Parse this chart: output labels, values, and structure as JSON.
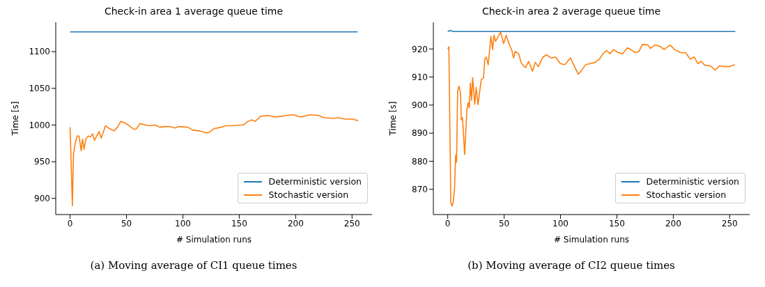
{
  "chart_data": [
    {
      "type": "line",
      "title": "Check-in area 1 average queue time",
      "xlabel": "# Simulation runs",
      "ylabel": "Time [s]",
      "xlim": [
        -12.75,
        267.75
      ],
      "xticks": [
        0,
        50,
        100,
        150,
        200,
        250
      ],
      "ylim": [
        878,
        1140
      ],
      "yticks": [
        900,
        950,
        1000,
        1050,
        1100
      ],
      "grid": false,
      "legend": "bottom right",
      "annotations": [
        "(a) Moving average of CI1 queue times"
      ],
      "series": [
        {
          "name": "Deterministic version",
          "color": "#1f77b4",
          "x": [
            0,
            255
          ],
          "values": [
            1127,
            1127
          ]
        },
        {
          "name": "Stochastic version",
          "color": "#ff7f0e",
          "x": [
            0,
            2,
            3,
            4.6,
            6.3,
            8,
            9.8,
            11,
            12.3,
            14,
            16,
            18,
            20,
            21.5,
            23.5,
            25.8,
            27.5,
            29.6,
            31.3,
            34,
            39,
            42,
            45,
            48.3,
            51.5,
            56.7,
            58.8,
            61.9,
            67.1,
            71,
            75.4,
            79.6,
            83.8,
            88,
            93.1,
            96.2,
            104.6,
            108.75,
            115,
            121.25,
            124.4,
            127.5,
            133.8,
            138,
            144,
            150.4,
            153.5,
            156.7,
            160.8,
            164,
            169.2,
            175.4,
            181.7,
            188,
            192,
            198.3,
            204.6,
            213,
            220.2,
            225.4,
            233.75,
            237.9,
            244,
            250.4,
            255.6
          ],
          "values": [
            997,
            890,
            960,
            976,
            985,
            985,
            965,
            981,
            967,
            981,
            985,
            984,
            988,
            979,
            985,
            991,
            982,
            991,
            999,
            996,
            992,
            997,
            1005,
            1003,
            1000,
            994,
            995,
            1002,
            1000,
            999,
            1000,
            997,
            998,
            998,
            996,
            998,
            997,
            993,
            992,
            989,
            991,
            995,
            997,
            999,
            999,
            1000,
            1000,
            1004,
            1007,
            1005,
            1012,
            1013,
            1011,
            1012,
            1013,
            1014,
            1011,
            1014,
            1013,
            1010,
            1009,
            1010,
            1008,
            1008,
            1006
          ]
        }
      ]
    },
    {
      "type": "line",
      "title": "Check-in area 2 average queue time",
      "xlabel": "# Simulation runs",
      "ylabel": "Time [s]",
      "xlim": [
        -12.75,
        267.75
      ],
      "xticks": [
        0,
        50,
        100,
        150,
        200,
        250
      ],
      "ylim": [
        861,
        929.5
      ],
      "yticks": [
        870,
        880,
        890,
        900,
        910,
        920
      ],
      "grid": false,
      "legend": "bottom right",
      "annotations": [
        "(b) Moving average of CI2 queue times"
      ],
      "series": [
        {
          "name": "Deterministic version",
          "color": "#1f77b4",
          "x": [
            0,
            2,
            5,
            255
          ],
          "values": [
            926.2,
            926.6,
            926.2,
            926.2
          ]
        },
        {
          "name": "Stochastic version",
          "color": "#ff7f0e",
          "x": [
            0,
            1,
            2.7,
            3.9,
            5.1,
            6.1,
            7,
            7.8,
            8.8,
            10,
            11.3,
            12.1,
            13.1,
            15,
            17,
            18.2,
            19.1,
            20.1,
            21.1,
            22.1,
            24,
            25.2,
            26.8,
            29.7,
            31.8,
            32.8,
            34.2,
            35.9,
            38.3,
            39.8,
            41,
            42.4,
            44.9,
            46.9,
            49.6,
            51.8,
            54.3,
            56.8,
            58.4,
            59.8,
            62.9,
            65.4,
            69,
            71.7,
            75.2,
            77.7,
            80.3,
            84.4,
            87.5,
            91.6,
            95.7,
            99.8,
            103.9,
            108.8,
            112.1,
            115.8,
            118.2,
            122.3,
            126.4,
            130.5,
            134.6,
            137.7,
            140.8,
            143.9,
            147,
            151,
            155.1,
            159.2,
            162.3,
            166.4,
            169.5,
            172.5,
            177.7,
            179.7,
            183.8,
            187.9,
            192,
            197.1,
            201.2,
            206.4,
            210.9,
            215,
            218.6,
            221.7,
            224.8,
            227.9,
            233,
            237.1,
            241.2,
            245.3,
            249.4,
            254.5
          ],
          "values": [
            920,
            920.8,
            865.4,
            864,
            866.1,
            870.8,
            882.2,
            879.7,
            905.2,
            906.7,
            904.4,
            894.7,
            895.5,
            882.4,
            898.6,
            900.9,
            899,
            907.9,
            901.7,
            909.8,
            900.3,
            906.3,
            900.1,
            909,
            909.8,
            916.4,
            917.1,
            914.4,
            924.5,
            919.8,
            924.9,
            922.7,
            924.5,
            926,
            921.9,
            924.9,
            921.9,
            919.5,
            916.8,
            919.1,
            918.3,
            914.8,
            913.3,
            915.6,
            912.1,
            915.2,
            913.7,
            917.1,
            917.9,
            916.8,
            917.1,
            914.8,
            914.4,
            916.8,
            914,
            911,
            912.1,
            914.4,
            914.8,
            915.2,
            916.4,
            918.3,
            919.5,
            918.3,
            919.8,
            918.7,
            918.3,
            920.4,
            919.8,
            918.7,
            919.1,
            921.6,
            921.4,
            920.2,
            921.4,
            921,
            919.8,
            921.4,
            919.8,
            918.7,
            918.7,
            916.4,
            917.1,
            914.8,
            915.6,
            914.2,
            914,
            912.5,
            914,
            913.7,
            913.7,
            914.4
          ]
        }
      ]
    }
  ]
}
